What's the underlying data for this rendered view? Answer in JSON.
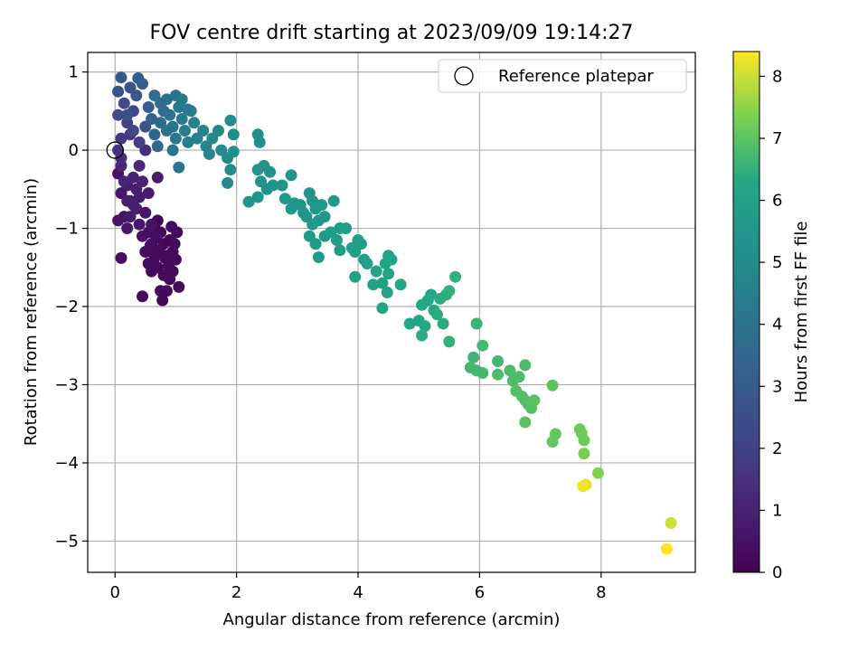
{
  "chart_data": {
    "type": "scatter",
    "title": "FOV centre drift starting at 2023/09/09 19:14:27",
    "xlabel": "Angular distance from reference (arcmin)",
    "ylabel": "Rotation from reference (arcmin)",
    "xlim": [
      -0.45,
      9.55
    ],
    "ylim": [
      -5.4,
      1.25
    ],
    "xticks": [
      0,
      2,
      4,
      6,
      8
    ],
    "yticks": [
      1,
      0,
      -1,
      -2,
      -3,
      -4,
      -5
    ],
    "grid": true,
    "legend": {
      "placement": "top-right",
      "entries": [
        {
          "label": "Reference platepar",
          "marker": "open-circle"
        }
      ]
    },
    "reference_point": {
      "x": 0.0,
      "y": 0.0
    },
    "colorbar": {
      "label": "Hours from first FF file",
      "range": [
        0,
        8.4
      ],
      "ticks": [
        0,
        1,
        2,
        3,
        4,
        5,
        6,
        7,
        8
      ],
      "colormap": "viridis"
    },
    "points": [
      [
        0.05,
        -0.3,
        0.5
      ],
      [
        0.1,
        -0.55,
        0.6
      ],
      [
        0.15,
        -0.85,
        0.5
      ],
      [
        0.2,
        -1.0,
        0.7
      ],
      [
        0.05,
        -0.9,
        0.6
      ],
      [
        0.1,
        -1.38,
        0.4
      ],
      [
        0.25,
        -0.65,
        0.8
      ],
      [
        0.2,
        -0.45,
        0.9
      ],
      [
        0.3,
        -0.35,
        1.0
      ],
      [
        0.1,
        -0.2,
        1.1
      ],
      [
        0.35,
        -0.75,
        0.9
      ],
      [
        0.4,
        -0.95,
        0.7
      ],
      [
        0.45,
        -1.1,
        0.5
      ],
      [
        0.5,
        -1.3,
        0.4
      ],
      [
        0.55,
        -1.45,
        0.3
      ],
      [
        0.6,
        -1.2,
        0.3
      ],
      [
        0.65,
        -1.0,
        0.3
      ],
      [
        0.7,
        -0.9,
        0.2
      ],
      [
        0.75,
        -1.05,
        0.2
      ],
      [
        0.8,
        -1.2,
        0.2
      ],
      [
        0.85,
        -1.35,
        0.2
      ],
      [
        0.9,
        -1.15,
        0.2
      ],
      [
        0.95,
        -1.3,
        0.2
      ],
      [
        1.0,
        -1.4,
        0.3
      ],
      [
        0.6,
        -1.55,
        0.3
      ],
      [
        0.7,
        -1.5,
        0.2
      ],
      [
        0.8,
        -1.6,
        0.3
      ],
      [
        0.9,
        -1.65,
        0.3
      ],
      [
        0.95,
        -1.55,
        0.3
      ],
      [
        0.75,
        -1.8,
        0.2
      ],
      [
        0.85,
        -1.8,
        0.3
      ],
      [
        1.05,
        -1.75,
        0.3
      ],
      [
        0.45,
        -1.87,
        0.3
      ],
      [
        0.78,
        -1.92,
        0.2
      ],
      [
        0.65,
        -1.35,
        0.3
      ],
      [
        0.55,
        -1.05,
        0.4
      ],
      [
        0.5,
        -0.8,
        0.6
      ],
      [
        0.4,
        -0.6,
        0.8
      ],
      [
        0.35,
        -0.5,
        0.9
      ],
      [
        0.3,
        -0.7,
        0.9
      ],
      [
        0.25,
        -0.85,
        0.8
      ],
      [
        0.2,
        -0.65,
        0.9
      ],
      [
        0.15,
        -0.4,
        1.1
      ],
      [
        0.1,
        -0.1,
        1.3
      ],
      [
        0.05,
        0.0,
        1.5
      ],
      [
        0.6,
        -0.95,
        0.5
      ],
      [
        0.68,
        -1.12,
        0.4
      ],
      [
        0.72,
        -1.28,
        0.3
      ],
      [
        0.82,
        -1.38,
        0.3
      ],
      [
        0.88,
        -1.48,
        0.3
      ],
      [
        0.58,
        -1.22,
        0.4
      ],
      [
        0.63,
        -1.42,
        0.3
      ],
      [
        0.98,
        -1.2,
        0.3
      ],
      [
        1.02,
        -1.05,
        0.3
      ],
      [
        0.93,
        -0.98,
        0.3
      ],
      [
        0.7,
        -0.35,
        0.8
      ],
      [
        0.4,
        -0.2,
        1.2
      ],
      [
        0.5,
        0.0,
        1.4
      ],
      [
        0.45,
        -0.4,
        1.0
      ],
      [
        0.55,
        -0.55,
        0.8
      ],
      [
        0.25,
        0.2,
        1.7
      ],
      [
        0.1,
        0.15,
        1.8
      ],
      [
        0.2,
        0.35,
        2.0
      ],
      [
        0.3,
        0.5,
        2.2
      ],
      [
        0.15,
        0.6,
        2.4
      ],
      [
        0.05,
        0.75,
        2.6
      ],
      [
        0.25,
        0.8,
        2.7
      ],
      [
        0.35,
        0.7,
        2.8
      ],
      [
        0.45,
        0.85,
        2.9
      ],
      [
        0.1,
        0.93,
        3.0
      ],
      [
        0.38,
        0.92,
        3.1
      ],
      [
        0.2,
        0.45,
        2.5
      ],
      [
        0.3,
        0.25,
        2.3
      ],
      [
        0.05,
        0.45,
        2.4
      ],
      [
        0.4,
        0.1,
        2.0
      ],
      [
        0.5,
        0.3,
        2.6
      ],
      [
        0.55,
        0.55,
        3.0
      ],
      [
        0.6,
        0.4,
        3.3
      ],
      [
        0.65,
        0.2,
        3.4
      ],
      [
        0.7,
        0.05,
        3.5
      ],
      [
        0.75,
        0.35,
        3.6
      ],
      [
        0.8,
        0.5,
        3.7
      ],
      [
        0.85,
        0.65,
        3.8
      ],
      [
        0.9,
        0.45,
        3.9
      ],
      [
        0.95,
        0.3,
        4.0
      ],
      [
        1.0,
        0.15,
        4.1
      ],
      [
        1.05,
        0.55,
        4.2
      ],
      [
        1.1,
        0.4,
        4.3
      ],
      [
        1.15,
        0.25,
        4.4
      ],
      [
        1.2,
        0.1,
        4.5
      ],
      [
        1.25,
        0.5,
        4.5
      ],
      [
        1.3,
        0.35,
        4.6
      ],
      [
        1.35,
        0.15,
        4.6
      ],
      [
        1.45,
        0.25,
        4.7
      ],
      [
        1.5,
        0.05,
        4.8
      ],
      [
        1.55,
        -0.05,
        4.8
      ],
      [
        1.6,
        0.15,
        4.9
      ],
      [
        1.7,
        0.25,
        4.9
      ],
      [
        1.75,
        0.0,
        5.0
      ],
      [
        1.85,
        -0.1,
        5.0
      ],
      [
        1.9,
        0.38,
        5.1
      ],
      [
        1.95,
        0.2,
        5.1
      ],
      [
        1.95,
        -0.02,
        5.2
      ],
      [
        1.85,
        -0.42,
        5.0
      ],
      [
        1.05,
        -0.22,
        4.1
      ],
      [
        0.95,
        0.0,
        4.0
      ],
      [
        0.65,
        0.7,
        3.8
      ],
      [
        0.75,
        0.6,
        3.7
      ],
      [
        1.0,
        0.7,
        4.0
      ],
      [
        1.1,
        0.65,
        4.2
      ],
      [
        1.2,
        0.52,
        4.3
      ],
      [
        0.85,
        0.25,
        3.9
      ],
      [
        1.9,
        -0.25,
        5.0
      ],
      [
        2.35,
        0.2,
        5.2
      ],
      [
        2.38,
        0.1,
        5.2
      ],
      [
        2.35,
        -0.25,
        5.3
      ],
      [
        2.45,
        -0.2,
        5.3
      ],
      [
        2.55,
        -0.28,
        5.3
      ],
      [
        2.4,
        -0.4,
        5.3
      ],
      [
        2.5,
        -0.5,
        5.3
      ],
      [
        2.6,
        -0.45,
        5.4
      ],
      [
        2.35,
        -0.6,
        5.4
      ],
      [
        2.2,
        -0.66,
        5.4
      ],
      [
        2.75,
        -0.45,
        5.4
      ],
      [
        2.9,
        -0.32,
        5.4
      ],
      [
        2.8,
        -0.62,
        5.5
      ],
      [
        2.95,
        -0.68,
        5.5
      ],
      [
        2.9,
        -0.75,
        5.5
      ],
      [
        3.05,
        -0.7,
        5.5
      ],
      [
        3.1,
        -0.8,
        5.5
      ],
      [
        3.2,
        -0.55,
        5.5
      ],
      [
        3.25,
        -0.65,
        5.5
      ],
      [
        3.3,
        -0.75,
        5.5
      ],
      [
        3.15,
        -0.85,
        5.5
      ],
      [
        3.35,
        -0.9,
        5.6
      ],
      [
        3.4,
        -0.7,
        5.6
      ],
      [
        3.45,
        -0.85,
        5.6
      ],
      [
        3.25,
        -0.95,
        5.6
      ],
      [
        3.6,
        -0.65,
        5.7
      ],
      [
        3.2,
        -1.1,
        5.7
      ],
      [
        3.3,
        -1.2,
        5.7
      ],
      [
        3.35,
        -1.37,
        5.7
      ],
      [
        3.45,
        -1.1,
        5.7
      ],
      [
        3.55,
        -1.05,
        5.8
      ],
      [
        3.65,
        -1.15,
        5.8
      ],
      [
        3.7,
        -1.0,
        5.8
      ],
      [
        3.8,
        -1.0,
        5.8
      ],
      [
        3.7,
        -1.28,
        5.8
      ],
      [
        3.9,
        -1.25,
        5.9
      ],
      [
        3.95,
        -1.3,
        5.9
      ],
      [
        4.0,
        -1.15,
        5.9
      ],
      [
        4.05,
        -1.2,
        5.9
      ],
      [
        4.1,
        -1.4,
        5.9
      ],
      [
        4.15,
        -1.45,
        6.0
      ],
      [
        3.95,
        -1.62,
        6.0
      ],
      [
        4.25,
        -1.72,
        6.0
      ],
      [
        4.3,
        -1.55,
        6.0
      ],
      [
        4.4,
        -1.7,
        6.0
      ],
      [
        4.45,
        -1.45,
        6.1
      ],
      [
        4.5,
        -1.35,
        6.1
      ],
      [
        4.55,
        -1.4,
        6.1
      ],
      [
        4.5,
        -1.58,
        6.1
      ],
      [
        4.48,
        -1.82,
        6.1
      ],
      [
        4.7,
        -1.72,
        6.2
      ],
      [
        4.4,
        -2.02,
        6.2
      ],
      [
        4.85,
        -2.22,
        6.2
      ],
      [
        5.0,
        -2.18,
        6.3
      ],
      [
        5.05,
        -1.98,
        6.3
      ],
      [
        5.1,
        -2.25,
        6.3
      ],
      [
        5.15,
        -1.92,
        6.3
      ],
      [
        5.2,
        -1.85,
        6.3
      ],
      [
        5.25,
        -2.05,
        6.3
      ],
      [
        5.3,
        -2.1,
        6.4
      ],
      [
        5.35,
        -1.9,
        6.4
      ],
      [
        5.4,
        -2.22,
        6.4
      ],
      [
        5.45,
        -1.85,
        6.4
      ],
      [
        5.5,
        -1.8,
        6.5
      ],
      [
        5.05,
        -2.37,
        6.4
      ],
      [
        5.5,
        -2.45,
        6.5
      ],
      [
        5.6,
        -1.62,
        6.5
      ],
      [
        5.95,
        -2.22,
        6.6
      ],
      [
        5.9,
        -2.65,
        6.6
      ],
      [
        6.05,
        -2.5,
        6.7
      ],
      [
        5.85,
        -2.78,
        6.7
      ],
      [
        5.95,
        -2.82,
        6.7
      ],
      [
        6.05,
        -2.85,
        6.7
      ],
      [
        6.3,
        -2.7,
        6.7
      ],
      [
        6.3,
        -2.87,
        6.8
      ],
      [
        6.5,
        -2.82,
        6.8
      ],
      [
        6.55,
        -2.95,
        6.8
      ],
      [
        6.65,
        -2.9,
        6.8
      ],
      [
        6.75,
        -2.75,
        6.8
      ],
      [
        6.6,
        -3.08,
        6.9
      ],
      [
        6.7,
        -3.15,
        6.9
      ],
      [
        6.75,
        -3.2,
        6.9
      ],
      [
        6.8,
        -3.25,
        6.9
      ],
      [
        6.85,
        -3.3,
        6.9
      ],
      [
        6.9,
        -3.2,
        7.0
      ],
      [
        7.2,
        -3.01,
        7.0
      ],
      [
        6.75,
        -3.48,
        7.0
      ],
      [
        7.25,
        -3.63,
        7.1
      ],
      [
        7.2,
        -3.73,
        7.1
      ],
      [
        7.65,
        -3.57,
        7.2
      ],
      [
        7.68,
        -3.62,
        7.2
      ],
      [
        7.72,
        -3.71,
        7.2
      ],
      [
        7.72,
        -3.88,
        7.3
      ],
      [
        7.95,
        -4.13,
        7.4
      ],
      [
        7.75,
        -4.28,
        8.2
      ],
      [
        7.7,
        -4.3,
        8.3
      ],
      [
        9.15,
        -4.77,
        8.0
      ],
      [
        9.08,
        -5.1,
        8.4
      ]
    ]
  }
}
